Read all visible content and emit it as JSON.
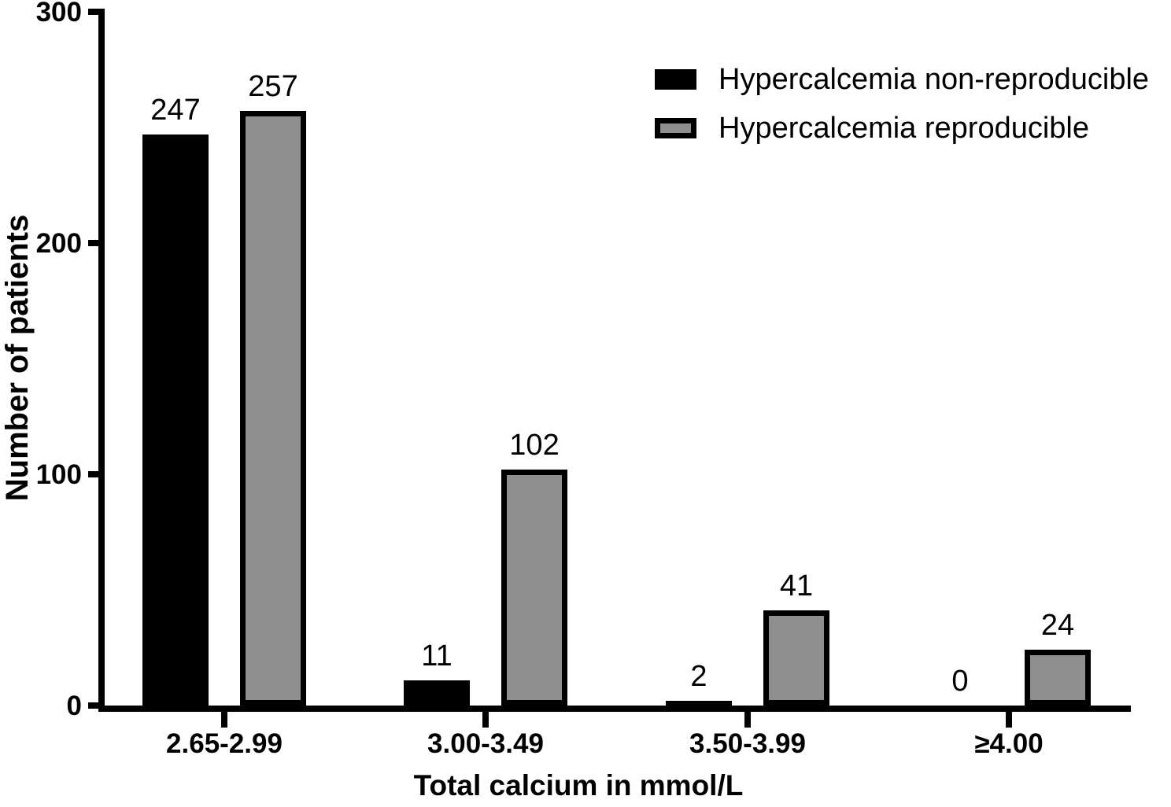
{
  "chart_data": {
    "type": "bar",
    "title": "",
    "xlabel": "Total calcium in mmol/L",
    "ylabel": "Number of patients",
    "categories": [
      "2.65-2.99",
      "3.00-3.49",
      "3.50-3.99",
      "≥4.00"
    ],
    "series": [
      {
        "name": "Hypercalcemia non-reproducible",
        "fill": "#000000",
        "stroke": "#000000",
        "values": [
          247,
          11,
          2,
          0
        ]
      },
      {
        "name": "Hypercalcemia reproducible",
        "fill": "#8f8f8f",
        "stroke": "#000000",
        "values": [
          257,
          102,
          41,
          24
        ]
      }
    ],
    "ylim": [
      0,
      300
    ],
    "yticks": [
      0,
      100,
      200,
      300
    ],
    "bar_value_labels_shown": true,
    "grid": false,
    "legend_position": "top-right",
    "background": "#ffffff",
    "axis_color": "#000000"
  }
}
